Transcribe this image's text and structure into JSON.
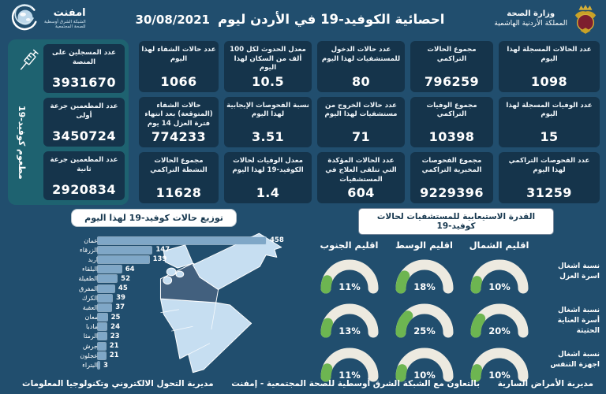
{
  "header": {
    "ministry_line1": "وزارة الصحة",
    "ministry_line2": "المملكة الأردنية الهاشمية",
    "title": "احصائية الكوفيد-19 في الأردن ليوم",
    "date": "30/08/2021",
    "emphnet_name": "امفنت",
    "emphnet_sub1": "الشبكة الشرق أوسطية",
    "emphnet_sub2": "للصحة المجتمعية"
  },
  "stats": {
    "columns": [
      {
        "cards": [
          {
            "label": "عدد الحالات المسجلة لهذا اليوم",
            "value": "1098"
          },
          {
            "label": "عدد الوفيات المسجلة لهذا اليوم",
            "value": "15"
          },
          {
            "label": "عدد الفحوصات التراكمي لهذا اليوم",
            "value": "31259"
          }
        ]
      },
      {
        "cards": [
          {
            "label": "مجموع الحالات التراكمي",
            "value": "796259"
          },
          {
            "label": "مجموع الوفيات التراكمي",
            "value": "10398"
          },
          {
            "label": "مجموع الفحوصات المخبرية التراكمي",
            "value": "9229396"
          }
        ]
      },
      {
        "cards": [
          {
            "label": "عدد حالات الدخول للمستشفيات لهذا اليوم",
            "value": "80"
          },
          {
            "label": "عدد حالات الخروج من مستشفيات لهذا اليوم",
            "value": "71"
          },
          {
            "label": "عدد الحالات المؤكدة التي تتلقى العلاج في المستشفيات",
            "value": "604"
          }
        ]
      },
      {
        "cards": [
          {
            "label": "معدل الحدوث لكل 100 ألف من السكان لهذا اليوم",
            "value": "10.5"
          },
          {
            "label": "نسبة الفحوصات الإيجابية لهذا اليوم",
            "value": "3.51"
          },
          {
            "label": "معدل الوفيات لحالات الكوفيد-19 لهذا اليوم",
            "value": "1.4"
          }
        ]
      },
      {
        "cards": [
          {
            "label": "عدد حالات الشفاء لهذا اليوم",
            "value": "1066"
          },
          {
            "label": "حالات الشفاء (المتوقعة) بعد انتهاء فترة العزل 14 يوم",
            "value": "774233"
          },
          {
            "label": "مجموع الحالات النشطة التراكمي",
            "value": "11628"
          }
        ]
      }
    ]
  },
  "vaccine": {
    "vertical_label": "مطعوم كوفيد-19",
    "cards": [
      {
        "label": "عدد المسجلين على المنصة",
        "value": "3931670"
      },
      {
        "label": "عدد المطعمين جرعة أولى",
        "value": "3450724"
      },
      {
        "label": "عدد المطعمين جرعة ثانية",
        "value": "2920834"
      }
    ]
  },
  "chart_data": [
    {
      "type": "bar",
      "orientation": "horizontal",
      "title": "توزيع حالات كوفيد-19 لهذا اليوم",
      "categories": [
        "عمان",
        "الزرقاء",
        "اربد",
        "البلقاء",
        "الطفيلة",
        "المفرق",
        "الكرك",
        "العقبة",
        "معان",
        "مادبا",
        "الرمثا",
        "جرش",
        "عجلون",
        "البتراء"
      ],
      "values": [
        458,
        147,
        139,
        64,
        52,
        45,
        39,
        37,
        25,
        24,
        23,
        21,
        21,
        3
      ],
      "xlim": [
        0,
        458
      ]
    },
    {
      "type": "gauge",
      "title": "القدرة الاستيعابية للمستشفيات لحالات كوفيد-19",
      "unit": "%",
      "columns": [
        "اقليم الشمال",
        "اقليم الوسط",
        "اقليم الجنوب"
      ],
      "rows": [
        {
          "label": "نسبة اشغال اسرة العزل",
          "values": [
            10,
            18,
            11
          ]
        },
        {
          "label": "نسبة اشغال أسرة العناية الحثيثة",
          "values": [
            20,
            25,
            13
          ]
        },
        {
          "label": "نسبة اشغال اجهزة التنفس",
          "values": [
            10,
            10,
            11
          ]
        }
      ]
    }
  ],
  "footer": {
    "right": "مديرية الأمراض السارية",
    "center": "بالتعاون مع الشبكة الشرق أوسطية للصحة المجتمعية - إمفنت",
    "left": "مديرية التحول الالكتروني وتكنولوجيا المعلومات"
  },
  "colors": {
    "background": "#214e6e",
    "card": "#15344b",
    "vaccine_panel": "#1e6270",
    "bar_fill": "#7fa7c7",
    "gauge_track": "#edeae0",
    "gauge_fill": "#6db551",
    "map_light": "#c6def1",
    "map_highlight": "#42607e",
    "map_medium": "#b5d3e9",
    "title_box_bg": "#ffffff",
    "title_box_text": "#16374e"
  }
}
